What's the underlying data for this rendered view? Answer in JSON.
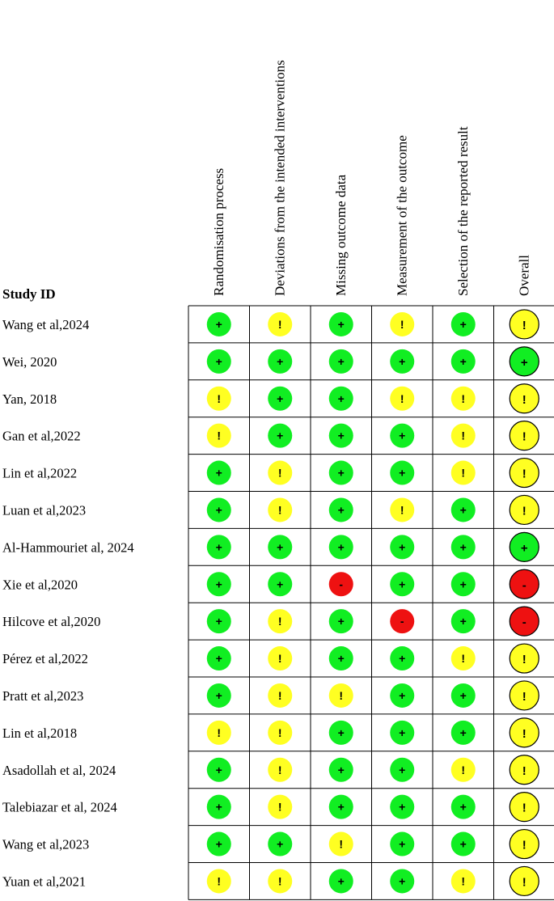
{
  "chart_data": {
    "type": "table",
    "row_header": "Study ID",
    "columns": [
      "Randomisation process",
      "Deviations from the intended interventions",
      "Missing outcome data",
      "Measurement of the outcome",
      "Selection of the reported result",
      "Overall"
    ],
    "symbols": {
      "low": "+",
      "some": "!",
      "high": "-"
    },
    "colors": {
      "low": "#11ee22",
      "some": "#ffff22",
      "high": "#ee1111",
      "border": "#000000"
    },
    "rows": [
      {
        "study": "Wang et al,2024",
        "ratings": [
          "low",
          "some",
          "low",
          "some",
          "low",
          "some"
        ]
      },
      {
        "study": "Wei, 2020",
        "ratings": [
          "low",
          "low",
          "low",
          "low",
          "low",
          "low"
        ]
      },
      {
        "study": "Yan, 2018",
        "ratings": [
          "some",
          "low",
          "low",
          "some",
          "some",
          "some"
        ]
      },
      {
        "study": "Gan et al,2022",
        "ratings": [
          "some",
          "low",
          "low",
          "low",
          "some",
          "some"
        ]
      },
      {
        "study": "Lin et al,2022",
        "ratings": [
          "low",
          "some",
          "low",
          "low",
          "some",
          "some"
        ]
      },
      {
        "study": "Luan et al,2023",
        "ratings": [
          "low",
          "some",
          "low",
          "some",
          "low",
          "some"
        ]
      },
      {
        "study": "Al-Hammouriet al, 2024",
        "ratings": [
          "low",
          "low",
          "low",
          "low",
          "low",
          "low"
        ]
      },
      {
        "study": "Xie et al,2020",
        "ratings": [
          "low",
          "low",
          "high",
          "low",
          "low",
          "high"
        ]
      },
      {
        "study": "Hilcove et al,2020",
        "ratings": [
          "low",
          "some",
          "low",
          "high",
          "low",
          "high"
        ]
      },
      {
        "study": "Pérez et al,2022",
        "ratings": [
          "low",
          "some",
          "low",
          "low",
          "some",
          "some"
        ]
      },
      {
        "study": "Pratt et al,2023",
        "ratings": [
          "low",
          "some",
          "some",
          "low",
          "low",
          "some"
        ]
      },
      {
        "study": "Lin et al,2018",
        "ratings": [
          "some",
          "some",
          "low",
          "low",
          "low",
          "some"
        ]
      },
      {
        "study": "Asadollah et al, 2024",
        "ratings": [
          "low",
          "some",
          "low",
          "low",
          "some",
          "some"
        ]
      },
      {
        "study": "Talebiazar et al, 2024",
        "ratings": [
          "low",
          "some",
          "low",
          "low",
          "low",
          "some"
        ]
      },
      {
        "study": "Wang et al,2023",
        "ratings": [
          "low",
          "low",
          "some",
          "low",
          "low",
          "some"
        ]
      },
      {
        "study": "Yuan et al,2021",
        "ratings": [
          "some",
          "some",
          "low",
          "low",
          "some",
          "some"
        ]
      }
    ]
  }
}
